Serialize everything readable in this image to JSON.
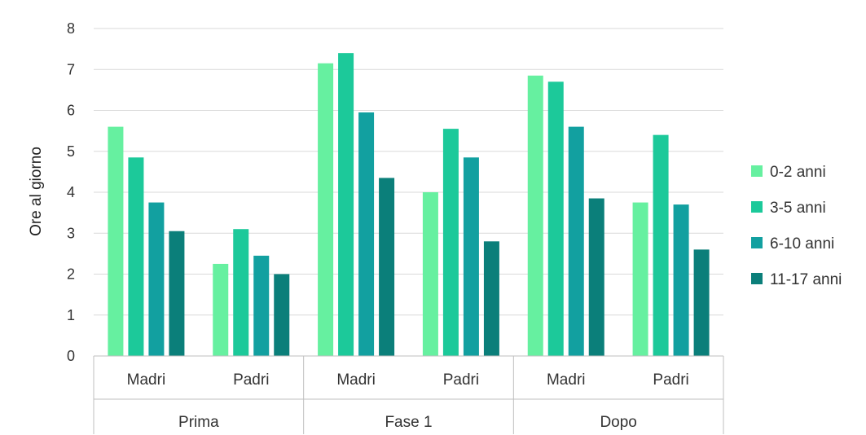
{
  "chart_data": {
    "type": "bar",
    "ylabel": "Ore al giorno",
    "ylim": [
      0,
      8
    ],
    "yticks": [
      "0",
      "1",
      "2",
      "3",
      "4",
      "5",
      "6",
      "7",
      "8"
    ],
    "grid": true,
    "legend_position": "right",
    "groups": [
      {
        "label": "Prima",
        "subcategories": [
          "Madri",
          "Padri"
        ]
      },
      {
        "label": "Fase 1",
        "subcategories": [
          "Madri",
          "Padri"
        ]
      },
      {
        "label": "Dopo",
        "subcategories": [
          "Madri",
          "Padri"
        ]
      }
    ],
    "categories": [
      "Prima - Madri",
      "Prima - Padri",
      "Fase 1 - Madri",
      "Fase 1 - Padri",
      "Dopo - Madri",
      "Dopo - Padri"
    ],
    "series": [
      {
        "name": "0-2 anni",
        "color": "#66f0a0",
        "values": [
          5.6,
          2.25,
          7.15,
          4.0,
          6.85,
          3.75
        ]
      },
      {
        "name": "3-5 anni",
        "color": "#1cc99a",
        "values": [
          4.85,
          3.1,
          7.4,
          5.55,
          6.7,
          5.4
        ]
      },
      {
        "name": "6-10 anni",
        "color": "#12a0a0",
        "values": [
          3.75,
          2.45,
          5.95,
          4.85,
          5.6,
          3.7
        ]
      },
      {
        "name": "11-17 anni",
        "color": "#0b7f7a",
        "values": [
          3.05,
          2.0,
          4.35,
          2.8,
          3.85,
          2.6
        ]
      }
    ]
  }
}
